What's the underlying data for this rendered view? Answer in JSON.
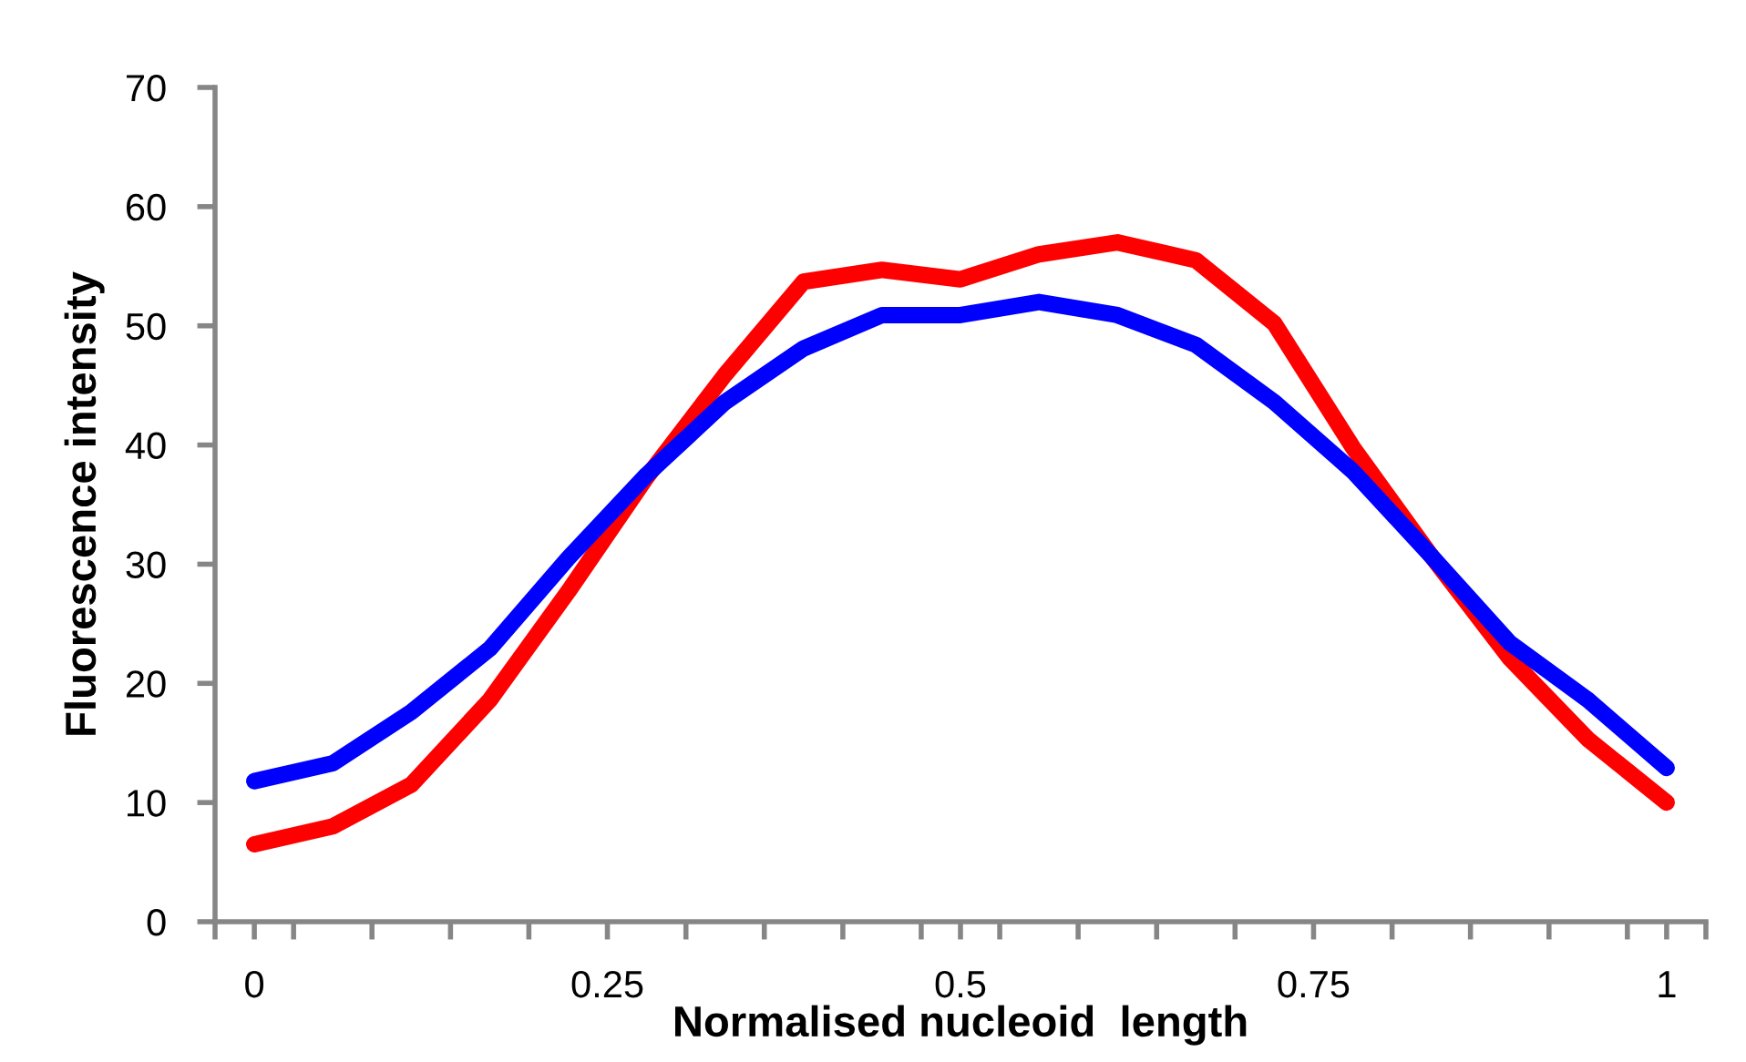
{
  "chart_data": {
    "type": "line",
    "xlabel": "Normalised nucleoid  length",
    "ylabel": "Fluorescence intensity",
    "x": [
      0,
      0.0556,
      0.1111,
      0.1667,
      0.2222,
      0.2778,
      0.3333,
      0.3889,
      0.4444,
      0.5,
      0.5556,
      0.6111,
      0.6667,
      0.7222,
      0.7778,
      0.8333,
      0.8889,
      0.9444,
      1
    ],
    "series": [
      {
        "color": "#ff0000",
        "values": [
          6.5,
          8.0,
          11.5,
          18.6,
          27.7,
          37.3,
          45.9,
          53.7,
          54.7,
          53.9,
          56.0,
          57.0,
          55.5,
          50.2,
          39.8,
          30.7,
          22.1,
          15.3,
          10.0
        ]
      },
      {
        "color": "#0000ff",
        "values": [
          11.8,
          13.3,
          17.6,
          22.9,
          30.5,
          37.5,
          43.6,
          48.1,
          50.9,
          50.9,
          52.0,
          50.9,
          48.4,
          43.6,
          37.8,
          30.7,
          23.4,
          18.6,
          12.9
        ]
      }
    ],
    "xlim": [
      -0.0278,
      1.0278
    ],
    "xticks": [
      {
        "value": -0.0278,
        "label": null
      },
      {
        "value": 0,
        "label": "0"
      },
      {
        "value": 0.0278,
        "label": null
      },
      {
        "value": 0.0833,
        "label": null
      },
      {
        "value": 0.1389,
        "label": null
      },
      {
        "value": 0.1944,
        "label": null
      },
      {
        "value": 0.25,
        "label": "0.25"
      },
      {
        "value": 0.3056,
        "label": null
      },
      {
        "value": 0.3611,
        "label": null
      },
      {
        "value": 0.4167,
        "label": null
      },
      {
        "value": 0.4722,
        "label": null
      },
      {
        "value": 0.5,
        "label": "0.5"
      },
      {
        "value": 0.5278,
        "label": null
      },
      {
        "value": 0.5833,
        "label": null
      },
      {
        "value": 0.6389,
        "label": null
      },
      {
        "value": 0.6944,
        "label": null
      },
      {
        "value": 0.75,
        "label": "0.75"
      },
      {
        "value": 0.8056,
        "label": null
      },
      {
        "value": 0.8611,
        "label": null
      },
      {
        "value": 0.9167,
        "label": null
      },
      {
        "value": 0.9722,
        "label": null
      },
      {
        "value": 1,
        "label": "1"
      },
      {
        "value": 1.0278,
        "label": null
      }
    ],
    "ylim": [
      0,
      70
    ],
    "yticks": [
      0,
      10,
      20,
      30,
      40,
      50,
      60,
      70
    ],
    "marker": "none",
    "line_style": "solid"
  }
}
